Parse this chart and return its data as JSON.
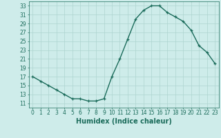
{
  "x": [
    0,
    1,
    2,
    3,
    4,
    5,
    6,
    7,
    8,
    9,
    10,
    11,
    12,
    13,
    14,
    15,
    16,
    17,
    18,
    19,
    20,
    21,
    22,
    23
  ],
  "y": [
    17,
    16,
    15,
    14,
    13,
    12,
    12,
    11.5,
    11.5,
    12,
    17,
    21,
    25.5,
    30,
    32,
    33,
    33,
    31.5,
    30.5,
    29.5,
    27.5,
    24,
    22.5,
    20
  ],
  "line_color": "#1a6b5a",
  "marker": "+",
  "marker_size": 3,
  "background_color": "#ceecea",
  "grid_color": "#aed4d0",
  "xlabel": "Humidex (Indice chaleur)",
  "xlim": [
    -0.5,
    23.5
  ],
  "ylim": [
    10,
    34
  ],
  "yticks": [
    11,
    13,
    15,
    17,
    19,
    21,
    23,
    25,
    27,
    29,
    31,
    33
  ],
  "xticks": [
    0,
    1,
    2,
    3,
    4,
    5,
    6,
    7,
    8,
    9,
    10,
    11,
    12,
    13,
    14,
    15,
    16,
    17,
    18,
    19,
    20,
    21,
    22,
    23
  ],
  "tick_fontsize": 5.5,
  "label_fontsize": 7,
  "line_width": 1.0
}
